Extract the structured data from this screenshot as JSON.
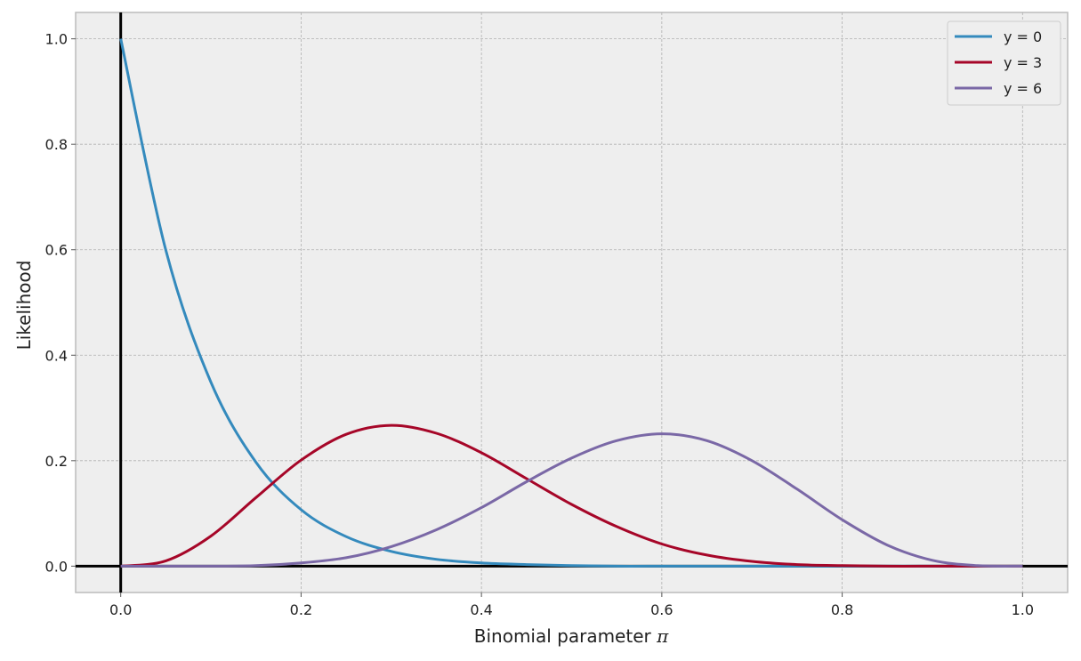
{
  "chart_data": {
    "type": "line",
    "xlabel": "Binomial parameter",
    "xlabel_symbol": "π",
    "ylabel": "Likelihood",
    "xlim": [
      -0.05,
      1.05
    ],
    "ylim": [
      -0.05,
      1.05
    ],
    "xticks": [
      0.0,
      0.2,
      0.4,
      0.6,
      0.8,
      1.0
    ],
    "xtick_labels": [
      "0.0",
      "0.2",
      "0.4",
      "0.6",
      "0.8",
      "1.0"
    ],
    "yticks": [
      0.0,
      0.2,
      0.4,
      0.6,
      0.8,
      1.0
    ],
    "ytick_labels": [
      "0.0",
      "0.2",
      "0.4",
      "0.6",
      "0.8",
      "1.0"
    ],
    "grid": true,
    "legend_position": "top-right",
    "reference_lines": {
      "x": 0,
      "y": 0
    },
    "x": [
      0.0,
      0.05,
      0.1,
      0.15,
      0.2,
      0.25,
      0.3,
      0.35,
      0.4,
      0.45,
      0.5,
      0.55,
      0.6,
      0.65,
      0.7,
      0.75,
      0.8,
      0.85,
      0.9,
      0.95,
      1.0
    ],
    "series": [
      {
        "name": "y = 0",
        "color": "#348abd",
        "values": [
          1.0,
          0.599,
          0.349,
          0.197,
          0.107,
          0.056,
          0.028,
          0.013,
          0.006,
          0.003,
          0.001,
          0.0,
          0.0,
          0.0,
          0.0,
          0.0,
          0.0,
          0.0,
          0.0,
          0.0,
          0.0
        ]
      },
      {
        "name": "y = 3",
        "color": "#a60628",
        "values": [
          0.0,
          0.01,
          0.057,
          0.13,
          0.201,
          0.25,
          0.267,
          0.252,
          0.215,
          0.166,
          0.117,
          0.075,
          0.042,
          0.021,
          0.009,
          0.003,
          0.001,
          0.0,
          0.0,
          0.0,
          0.0
        ]
      },
      {
        "name": "y = 6",
        "color": "#7a68a6",
        "values": [
          0.0,
          0.0,
          0.0,
          0.001,
          0.006,
          0.016,
          0.037,
          0.069,
          0.111,
          0.16,
          0.205,
          0.238,
          0.251,
          0.238,
          0.2,
          0.146,
          0.088,
          0.04,
          0.011,
          0.001,
          0.0
        ]
      }
    ]
  }
}
